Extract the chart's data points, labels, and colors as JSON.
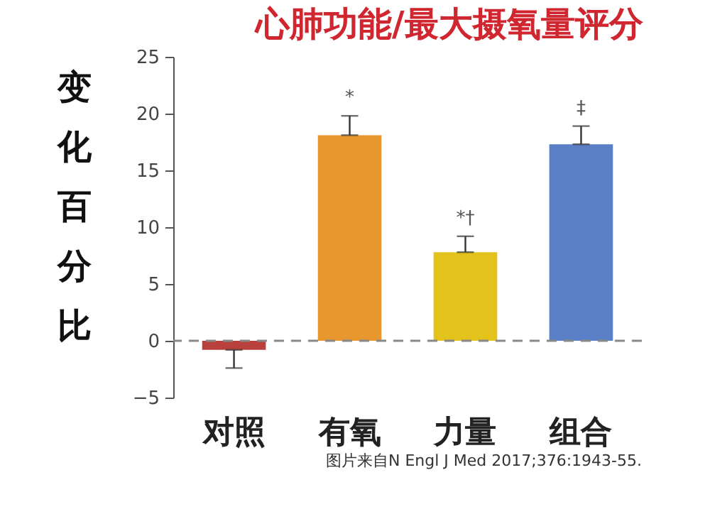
{
  "chart_data": {
    "type": "bar",
    "title": "心肺功能/最大摄氧量评分",
    "ylabel": "变化百分比",
    "categories": [
      "对照",
      "有氧",
      "力量",
      "组合"
    ],
    "values": [
      -0.8,
      18.1,
      7.8,
      17.3
    ],
    "colors": [
      "#b9413b",
      "#e8962e",
      "#e3c21b",
      "#5b7fc7"
    ],
    "errors": [
      [
        -2.4,
        -0.8
      ],
      [
        18.1,
        19.8
      ],
      [
        7.8,
        9.2
      ],
      [
        17.3,
        18.9
      ]
    ],
    "ylim": [
      -5,
      25
    ],
    "yticks": [
      -5,
      0,
      5,
      10,
      15,
      20,
      25
    ],
    "ref_lines": [
      {
        "axis": "y",
        "value": 0,
        "line_style": "dashed",
        "color": "#888888"
      }
    ],
    "annotations": [
      {
        "text": "*",
        "x": "有氧",
        "y": 19.8
      },
      {
        "text": "*†",
        "x": "力量",
        "y": 9.2
      },
      {
        "text": "‡",
        "x": "组合",
        "y": 18.9
      },
      "图片来自N Engl J Med 2017;376:1943-55."
    ],
    "grid": false
  }
}
